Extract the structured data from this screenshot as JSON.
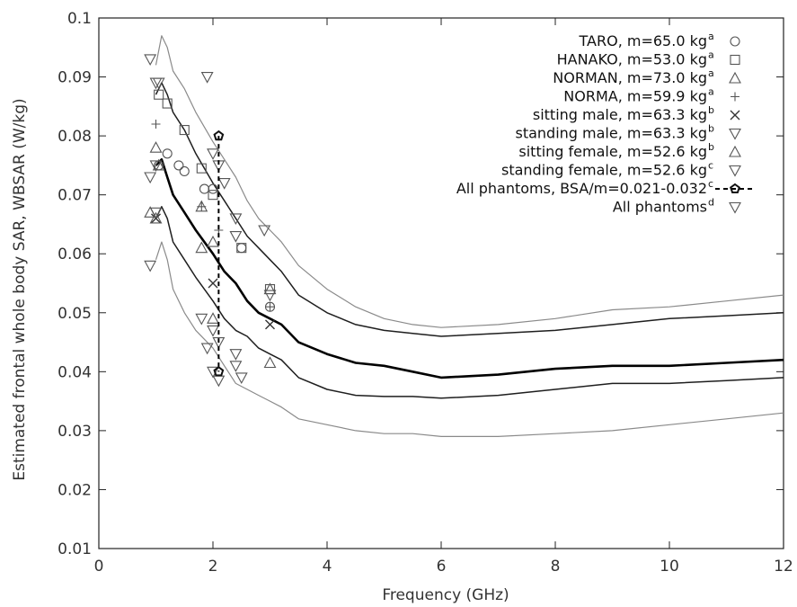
{
  "chart_data": {
    "type": "line",
    "title": "",
    "xlabel": "Frequency (GHz)",
    "ylabel": "Estimated frontal whole body SAR, WBSAR (W/kg)",
    "xlim": [
      0,
      12
    ],
    "ylim": [
      0.01,
      0.1
    ],
    "xticks": [
      0,
      2,
      4,
      6,
      8,
      10,
      12
    ],
    "yticks": [
      0.01,
      0.02,
      0.03,
      0.04,
      0.05,
      0.06,
      0.07,
      0.08,
      0.09,
      0.1
    ],
    "ytick_labels": [
      "0.01",
      "0.02",
      "0.03",
      "0.04",
      "0.05",
      "0.06",
      "0.07",
      "0.08",
      "0.09",
      "0.1"
    ],
    "grid": false,
    "legend_position": "top-right",
    "curves": [
      {
        "id": "outer-upper",
        "style": "thin-gray",
        "x": [
          1.0,
          1.1,
          1.2,
          1.3,
          1.5,
          1.7,
          2.0,
          2.2,
          2.4,
          2.6,
          2.8,
          3.0,
          3.2,
          3.5,
          4.0,
          4.5,
          5.0,
          5.5,
          6.0,
          7.0,
          8.0,
          9.0,
          10.0,
          11.0,
          12.0
        ],
        "y": [
          0.092,
          0.097,
          0.095,
          0.091,
          0.088,
          0.084,
          0.079,
          0.076,
          0.073,
          0.069,
          0.066,
          0.064,
          0.062,
          0.058,
          0.054,
          0.051,
          0.049,
          0.048,
          0.0475,
          0.048,
          0.049,
          0.0505,
          0.051,
          0.052,
          0.053
        ]
      },
      {
        "id": "inner-upper",
        "style": "dark",
        "x": [
          1.0,
          1.1,
          1.2,
          1.3,
          1.5,
          1.7,
          2.0,
          2.2,
          2.4,
          2.6,
          2.8,
          3.0,
          3.2,
          3.5,
          4.0,
          4.5,
          5.0,
          5.5,
          6.0,
          7.0,
          8.0,
          9.0,
          10.0,
          11.0,
          12.0
        ],
        "y": [
          0.087,
          0.089,
          0.087,
          0.084,
          0.081,
          0.077,
          0.072,
          0.069,
          0.066,
          0.063,
          0.061,
          0.059,
          0.057,
          0.053,
          0.05,
          0.048,
          0.047,
          0.0465,
          0.046,
          0.0465,
          0.047,
          0.048,
          0.049,
          0.0495,
          0.05
        ]
      },
      {
        "id": "mean",
        "style": "thick",
        "x": [
          1.0,
          1.1,
          1.2,
          1.3,
          1.5,
          1.7,
          2.0,
          2.2,
          2.4,
          2.6,
          2.8,
          3.0,
          3.2,
          3.5,
          4.0,
          4.5,
          5.0,
          5.5,
          6.0,
          7.0,
          8.0,
          9.0,
          10.0,
          11.0,
          12.0
        ],
        "y": [
          0.075,
          0.076,
          0.073,
          0.07,
          0.067,
          0.064,
          0.06,
          0.057,
          0.055,
          0.052,
          0.05,
          0.049,
          0.048,
          0.045,
          0.043,
          0.0415,
          0.041,
          0.04,
          0.039,
          0.0395,
          0.0405,
          0.041,
          0.041,
          0.0415,
          0.042
        ]
      },
      {
        "id": "inner-lower",
        "style": "dark",
        "x": [
          1.0,
          1.1,
          1.2,
          1.3,
          1.5,
          1.7,
          2.0,
          2.2,
          2.4,
          2.6,
          2.8,
          3.0,
          3.2,
          3.5,
          4.0,
          4.5,
          5.0,
          5.5,
          6.0,
          7.0,
          8.0,
          9.0,
          10.0,
          11.0,
          12.0
        ],
        "y": [
          0.066,
          0.068,
          0.066,
          0.062,
          0.059,
          0.056,
          0.052,
          0.049,
          0.047,
          0.046,
          0.044,
          0.043,
          0.042,
          0.039,
          0.037,
          0.036,
          0.0358,
          0.0358,
          0.0355,
          0.036,
          0.037,
          0.038,
          0.038,
          0.0385,
          0.039
        ]
      },
      {
        "id": "outer-lower",
        "style": "thin-gray",
        "x": [
          1.0,
          1.1,
          1.2,
          1.3,
          1.5,
          1.7,
          2.0,
          2.2,
          2.4,
          2.6,
          2.8,
          3.0,
          3.2,
          3.5,
          4.0,
          4.5,
          5.0,
          5.5,
          6.0,
          7.0,
          8.0,
          9.0,
          10.0,
          11.0,
          12.0
        ],
        "y": [
          0.059,
          0.062,
          0.059,
          0.054,
          0.05,
          0.047,
          0.044,
          0.041,
          0.038,
          0.037,
          0.036,
          0.035,
          0.034,
          0.032,
          0.031,
          0.03,
          0.0295,
          0.0295,
          0.029,
          0.029,
          0.0295,
          0.03,
          0.031,
          0.032,
          0.033
        ]
      }
    ],
    "marker_series": [
      {
        "id": "taro",
        "label": "TARO, m=65.0 kg",
        "sup": "a",
        "marker": "circle",
        "points": [
          [
            1.05,
            0.075
          ],
          [
            1.2,
            0.077
          ],
          [
            1.4,
            0.075
          ],
          [
            1.5,
            0.074
          ],
          [
            1.85,
            0.071
          ],
          [
            2.0,
            0.071
          ],
          [
            2.5,
            0.061
          ],
          [
            3.0,
            0.051
          ]
        ]
      },
      {
        "id": "hanako",
        "label": "HANAKO, m=53.0 kg",
        "sup": "a",
        "marker": "square",
        "points": [
          [
            1.05,
            0.087
          ],
          [
            1.2,
            0.0855
          ],
          [
            1.5,
            0.081
          ],
          [
            1.8,
            0.0745
          ],
          [
            2.0,
            0.07
          ],
          [
            2.5,
            0.061
          ],
          [
            3.0,
            0.054
          ]
        ]
      },
      {
        "id": "norman",
        "label": "NORMAN, m=73.0 kg",
        "sup": "a",
        "marker": "triangle-up",
        "points": [
          [
            1.0,
            0.078
          ],
          [
            1.05,
            0.075
          ],
          [
            1.8,
            0.068
          ],
          [
            2.0,
            0.062
          ],
          [
            3.0,
            0.054
          ]
        ]
      },
      {
        "id": "norma",
        "label": "NORMA, m=59.9 kg",
        "sup": "a",
        "marker": "plus",
        "points": [
          [
            1.0,
            0.082
          ],
          [
            1.8,
            0.068
          ],
          [
            2.1,
            0.064
          ],
          [
            3.0,
            0.051
          ]
        ]
      },
      {
        "id": "sitting-male",
        "label": "sitting male, m=63.3 kg",
        "sup": "b",
        "marker": "cross",
        "points": [
          [
            1.0,
            0.066
          ],
          [
            2.0,
            0.055
          ],
          [
            3.0,
            0.048
          ]
        ]
      },
      {
        "id": "standing-male",
        "label": "standing male, m=63.3 kg",
        "sup": "b",
        "marker": "triangle-down",
        "points": [
          [
            0.9,
            0.058
          ],
          [
            1.0,
            0.067
          ],
          [
            1.8,
            0.049
          ],
          [
            2.1,
            0.045
          ],
          [
            2.5,
            0.039
          ]
        ]
      },
      {
        "id": "sitting-female",
        "label": "sitting female, m=52.6 kg",
        "sup": "b",
        "marker": "triangle-up",
        "points": [
          [
            0.9,
            0.067
          ],
          [
            1.0,
            0.066
          ],
          [
            1.8,
            0.061
          ],
          [
            2.0,
            0.049
          ],
          [
            3.0,
            0.0415
          ]
        ]
      },
      {
        "id": "standing-female",
        "label": "standing female, m=52.6 kg",
        "sup": "c",
        "marker": "triangle-down",
        "points": [
          [
            0.9,
            0.073
          ],
          [
            1.0,
            0.075
          ],
          [
            2.0,
            0.047
          ],
          [
            2.4,
            0.043
          ],
          [
            2.1,
            0.0385
          ]
        ]
      },
      {
        "id": "all-phantoms",
        "label": "All phantoms",
        "sup": "d",
        "marker": "triangle-down",
        "points": [
          [
            0.9,
            0.093
          ],
          [
            1.0,
            0.089
          ],
          [
            1.05,
            0.089
          ],
          [
            1.9,
            0.09
          ],
          [
            2.0,
            0.077
          ],
          [
            2.1,
            0.075
          ],
          [
            2.2,
            0.072
          ],
          [
            2.4,
            0.066
          ],
          [
            2.4,
            0.063
          ],
          [
            2.9,
            0.064
          ],
          [
            3.0,
            0.053
          ],
          [
            1.9,
            0.044
          ],
          [
            2.0,
            0.04
          ],
          [
            2.4,
            0.041
          ]
        ]
      }
    ],
    "bsa_range": {
      "label": "All phantoms, BSA/m=0.021-0.032",
      "sup": "c",
      "marker": "pentagon",
      "x": 2.1,
      "y_low": 0.04,
      "y_high": 0.08
    }
  }
}
